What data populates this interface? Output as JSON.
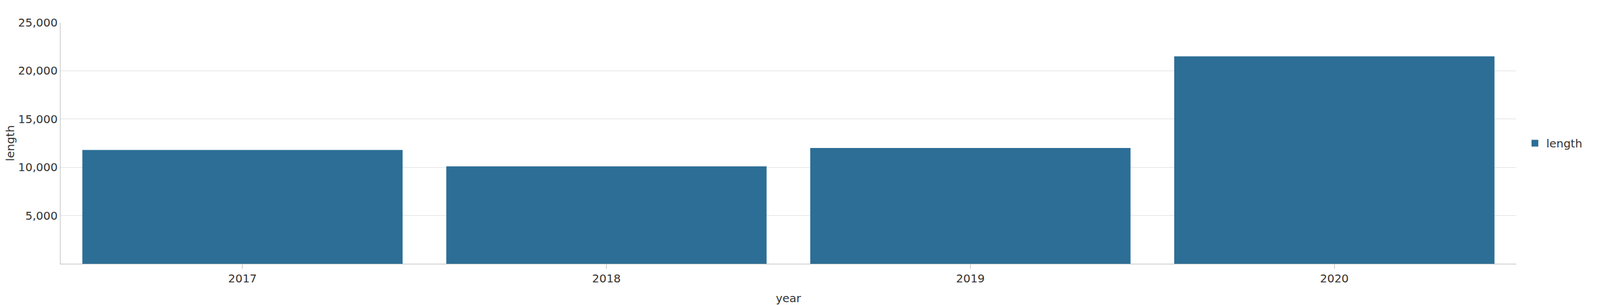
{
  "chart_data": {
    "type": "bar",
    "categories": [
      "2017",
      "2018",
      "2019",
      "2020"
    ],
    "series": [
      {
        "name": "length",
        "color": "#2c6e96",
        "values": [
          11800,
          10100,
          12000,
          21500
        ]
      }
    ],
    "x_label": "year",
    "y_label": "length",
    "ylim": [
      0,
      25000
    ],
    "yticks": [
      {
        "value": 5000,
        "label": "5,000"
      },
      {
        "value": 10000,
        "label": "10,000"
      },
      {
        "value": 15000,
        "label": "15,000"
      },
      {
        "value": 20000,
        "label": "20,000"
      },
      {
        "value": 25000,
        "label": "25,000"
      }
    ],
    "grid": true,
    "legend": "right"
  }
}
